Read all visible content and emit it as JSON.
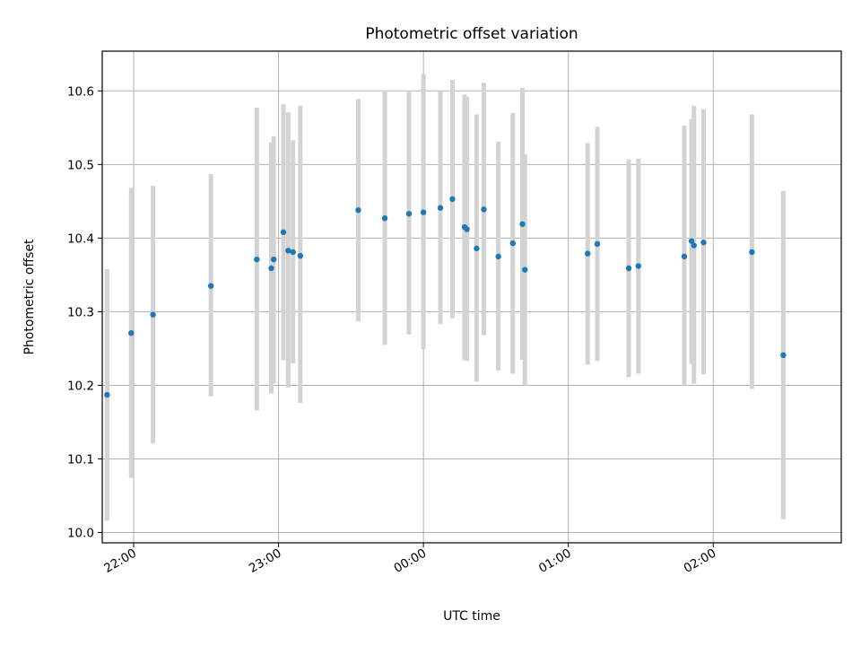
{
  "chart_data": {
    "type": "scatter",
    "title": "Photometric offset variation",
    "xlabel": "UTC time",
    "ylabel": "Photometric offset",
    "x_unit": "UTC time (HH:MM)",
    "x_tick_labels": [
      "22:00",
      "23:00",
      "00:00",
      "01:00",
      "02:00"
    ],
    "y_tick_labels": [
      "10.0",
      "10.1",
      "10.2",
      "10.3",
      "10.4",
      "10.5",
      "10.6"
    ],
    "y_ticks": [
      10.0,
      10.1,
      10.2,
      10.3,
      10.4,
      10.5,
      10.6
    ],
    "xlim": [
      "21:47",
      "02:53"
    ],
    "ylim": [
      9.986,
      10.654
    ],
    "grid": true,
    "marker_color": "#1f77b4",
    "errorbar_color": "#d3d3d3",
    "points": [
      {
        "t": "21:49",
        "y": 10.187,
        "lo": 10.016,
        "hi": 10.358
      },
      {
        "t": "21:59",
        "y": 10.271,
        "lo": 10.074,
        "hi": 10.468
      },
      {
        "t": "22:08",
        "y": 10.296,
        "lo": 10.121,
        "hi": 10.471
      },
      {
        "t": "22:32",
        "y": 10.335,
        "lo": 10.185,
        "hi": 10.487
      },
      {
        "t": "22:51",
        "y": 10.371,
        "lo": 10.166,
        "hi": 10.577
      },
      {
        "t": "22:57",
        "y": 10.359,
        "lo": 10.189,
        "hi": 10.53
      },
      {
        "t": "22:58",
        "y": 10.371,
        "lo": 10.203,
        "hi": 10.538
      },
      {
        "t": "23:02",
        "y": 10.408,
        "lo": 10.234,
        "hi": 10.582
      },
      {
        "t": "23:04",
        "y": 10.383,
        "lo": 10.197,
        "hi": 10.571
      },
      {
        "t": "23:06",
        "y": 10.381,
        "lo": 10.23,
        "hi": 10.533
      },
      {
        "t": "23:09",
        "y": 10.376,
        "lo": 10.176,
        "hi": 10.58
      },
      {
        "t": "23:33",
        "y": 10.438,
        "lo": 10.287,
        "hi": 10.589
      },
      {
        "t": "23:44",
        "y": 10.427,
        "lo": 10.255,
        "hi": 10.601
      },
      {
        "t": "23:54",
        "y": 10.433,
        "lo": 10.269,
        "hi": 10.599
      },
      {
        "t": "00:00",
        "y": 10.435,
        "lo": 10.249,
        "hi": 10.623
      },
      {
        "t": "00:07",
        "y": 10.441,
        "lo": 10.283,
        "hi": 10.599
      },
      {
        "t": "00:12",
        "y": 10.453,
        "lo": 10.291,
        "hi": 10.615
      },
      {
        "t": "00:17",
        "y": 10.415,
        "lo": 10.234,
        "hi": 10.595
      },
      {
        "t": "00:18",
        "y": 10.412,
        "lo": 10.233,
        "hi": 10.592
      },
      {
        "t": "00:22",
        "y": 10.386,
        "lo": 10.205,
        "hi": 10.568
      },
      {
        "t": "00:25",
        "y": 10.439,
        "lo": 10.268,
        "hi": 10.611
      },
      {
        "t": "00:31",
        "y": 10.375,
        "lo": 10.22,
        "hi": 10.531
      },
      {
        "t": "00:37",
        "y": 10.393,
        "lo": 10.216,
        "hi": 10.57
      },
      {
        "t": "00:41",
        "y": 10.419,
        "lo": 10.235,
        "hi": 10.604
      },
      {
        "t": "00:42",
        "y": 10.357,
        "lo": 10.2,
        "hi": 10.514
      },
      {
        "t": "01:08",
        "y": 10.379,
        "lo": 10.228,
        "hi": 10.529
      },
      {
        "t": "01:12",
        "y": 10.392,
        "lo": 10.233,
        "hi": 10.551
      },
      {
        "t": "01:25",
        "y": 10.359,
        "lo": 10.211,
        "hi": 10.507
      },
      {
        "t": "01:29",
        "y": 10.362,
        "lo": 10.216,
        "hi": 10.508
      },
      {
        "t": "01:48",
        "y": 10.375,
        "lo": 10.2,
        "hi": 10.553
      },
      {
        "t": "01:51",
        "y": 10.396,
        "lo": 10.229,
        "hi": 10.562
      },
      {
        "t": "01:52",
        "y": 10.39,
        "lo": 10.202,
        "hi": 10.58
      },
      {
        "t": "01:56",
        "y": 10.394,
        "lo": 10.215,
        "hi": 10.575
      },
      {
        "t": "02:16",
        "y": 10.381,
        "lo": 10.195,
        "hi": 10.568
      },
      {
        "t": "02:29",
        "y": 10.241,
        "lo": 10.018,
        "hi": 10.464
      }
    ]
  }
}
